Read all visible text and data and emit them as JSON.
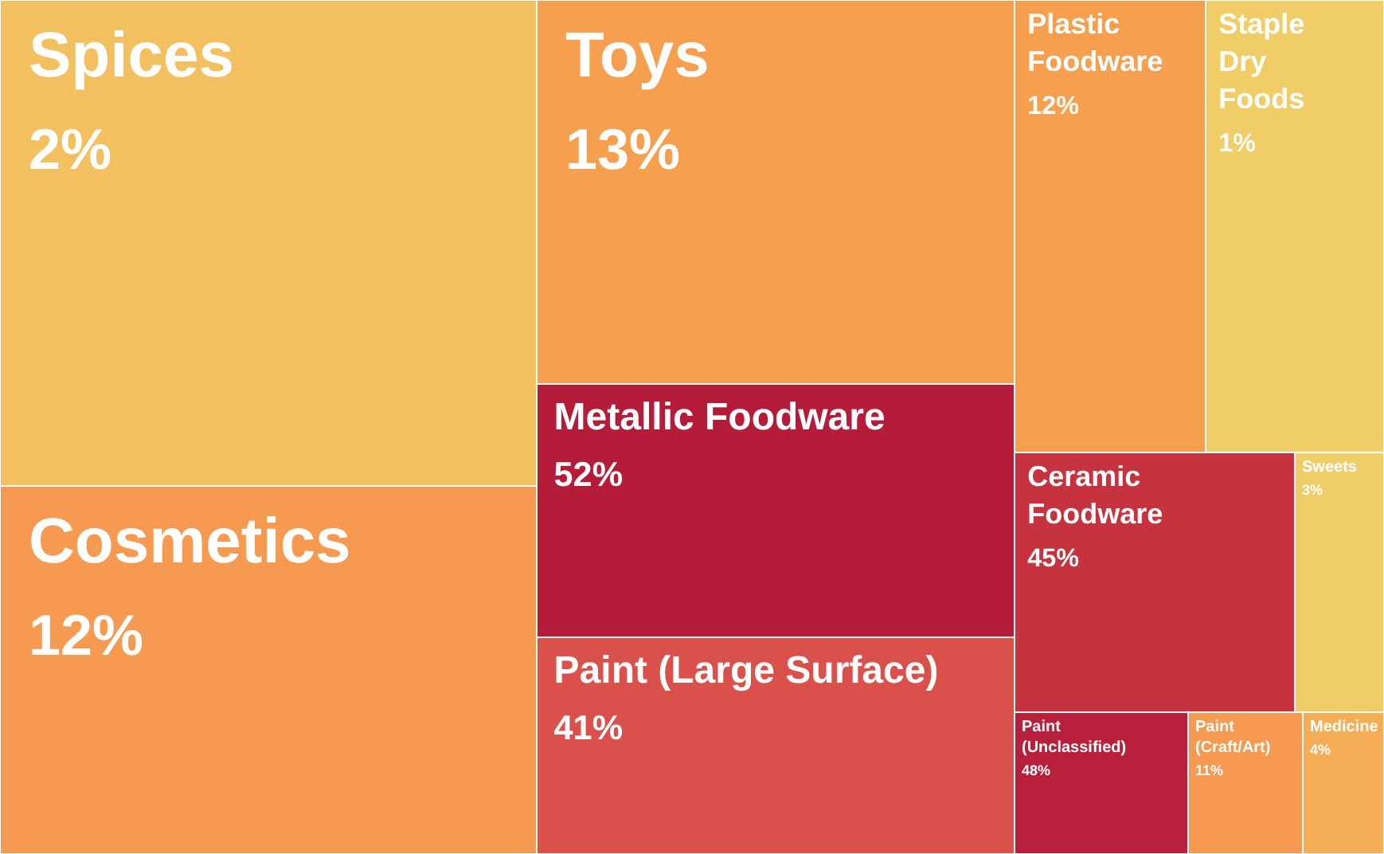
{
  "chart_data": {
    "type": "other",
    "categories": [
      "Spices",
      "Cosmetics",
      "Toys",
      "Metallic Foodware",
      "Paint (Large Surface)",
      "Plastic Foodware",
      "Staple Dry Foods",
      "Ceramic Foodware",
      "Sweets",
      "Paint (Unclassified)",
      "Paint (Craft/Art)",
      "Medicine"
    ],
    "values": [
      2,
      12,
      13,
      52,
      41,
      12,
      1,
      45,
      3,
      48,
      11,
      4
    ],
    "value_labels": [
      "2%",
      "12%",
      "13%",
      "52%",
      "41%",
      "12%",
      "1%",
      "45%",
      "3%",
      "48%",
      "11%",
      "4%"
    ],
    "colors": [
      "#f2c05e",
      "#f59a50",
      "#f6a04f",
      "#b41c3a",
      "#d9514a",
      "#f6a04f",
      "#f1cd68",
      "#c7323f",
      "#f1cd68",
      "#b81f3b",
      "#f59a50",
      "#f5ae55"
    ]
  }
}
